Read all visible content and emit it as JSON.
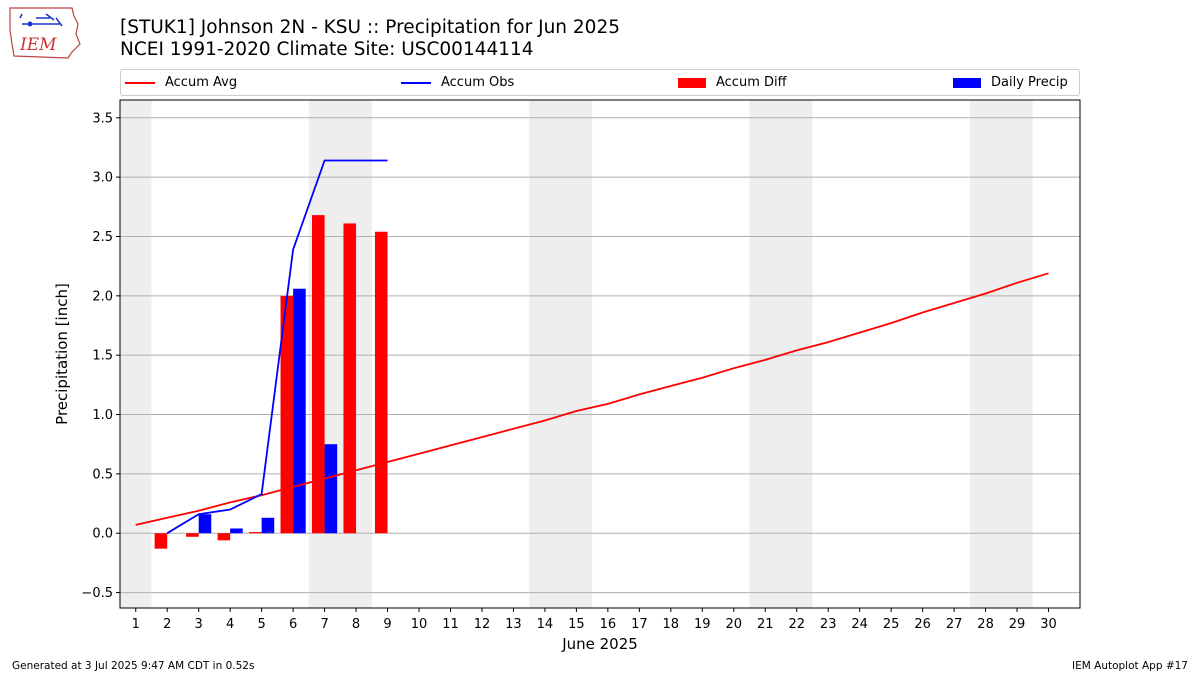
{
  "header": {
    "title_line1": "[STUK1] Johnson 2N - KSU :: Precipitation for Jun 2025",
    "title_line2": "NCEI 1991-2020 Climate Site: USC00144114",
    "logo_text": "IEM"
  },
  "footer": {
    "generated": "Generated at 3 Jul 2025 9:47 AM CDT in 0.52s",
    "app": "IEM Autoplot App #17"
  },
  "colors": {
    "accum_avg": "#ff0000",
    "accum_obs": "#0000ff",
    "accum_diff": "#ff0000",
    "daily_precip": "#0000ff",
    "weekend_shade": "#eeeeee",
    "grid": "#b0b0b0"
  },
  "chart_data": {
    "type": "bar",
    "xlabel": "June 2025",
    "ylabel": "Precipitation [inch]",
    "xlim": [
      0.5,
      31.0
    ],
    "ylim": [
      -0.63,
      3.65
    ],
    "yticks": [
      -0.5,
      0.0,
      0.5,
      1.0,
      1.5,
      2.0,
      2.5,
      3.0,
      3.5
    ],
    "ytick_labels": [
      "−0.5",
      "0.0",
      "0.5",
      "1.0",
      "1.5",
      "2.0",
      "2.5",
      "3.0",
      "3.5"
    ],
    "x": [
      1,
      2,
      3,
      4,
      5,
      6,
      7,
      8,
      9,
      10,
      11,
      12,
      13,
      14,
      15,
      16,
      17,
      18,
      19,
      20,
      21,
      22,
      23,
      24,
      25,
      26,
      27,
      28,
      29,
      30
    ],
    "xtick_labels": [
      "1",
      "2",
      "3",
      "4",
      "5",
      "6",
      "7",
      "8",
      "9",
      "10",
      "11",
      "12",
      "13",
      "14",
      "15",
      "16",
      "17",
      "18",
      "19",
      "20",
      "21",
      "22",
      "23",
      "24",
      "25",
      "26",
      "27",
      "28",
      "29",
      "30"
    ],
    "shaded_days": [
      [
        0.5,
        1.5
      ],
      [
        6.5,
        8.5
      ],
      [
        13.5,
        15.5
      ],
      [
        20.5,
        22.5
      ],
      [
        27.5,
        29.5
      ]
    ],
    "grid": "horizontal",
    "legend_position": "top",
    "series": [
      {
        "name": "Accum Avg",
        "kind": "line",
        "x": [
          1,
          2,
          3,
          4,
          5,
          6,
          7,
          8,
          9,
          10,
          11,
          12,
          13,
          14,
          15,
          16,
          17,
          18,
          19,
          20,
          21,
          22,
          23,
          24,
          25,
          26,
          27,
          28,
          29,
          30
        ],
        "values": [
          0.07,
          0.13,
          0.19,
          0.26,
          0.32,
          0.39,
          0.46,
          0.53,
          0.6,
          0.67,
          0.74,
          0.81,
          0.88,
          0.95,
          1.03,
          1.09,
          1.17,
          1.24,
          1.31,
          1.39,
          1.46,
          1.54,
          1.61,
          1.69,
          1.77,
          1.86,
          1.94,
          2.02,
          2.11,
          2.19
        ]
      },
      {
        "name": "Accum Obs",
        "kind": "line",
        "x": [
          2,
          3,
          4,
          5,
          6,
          7,
          8,
          9
        ],
        "values": [
          0.0,
          0.16,
          0.2,
          0.33,
          2.39,
          3.14,
          3.14,
          3.14
        ]
      },
      {
        "name": "Accum Diff",
        "kind": "bar",
        "x": [
          2,
          3,
          4,
          5,
          6,
          7,
          8,
          9
        ],
        "values": [
          -0.13,
          -0.03,
          -0.06,
          0.01,
          2.0,
          2.68,
          2.61,
          2.54
        ]
      },
      {
        "name": "Daily Precip",
        "kind": "bar",
        "x": [
          3,
          4,
          5,
          6,
          7
        ],
        "values": [
          0.16,
          0.04,
          0.13,
          2.06,
          0.75
        ]
      }
    ]
  }
}
